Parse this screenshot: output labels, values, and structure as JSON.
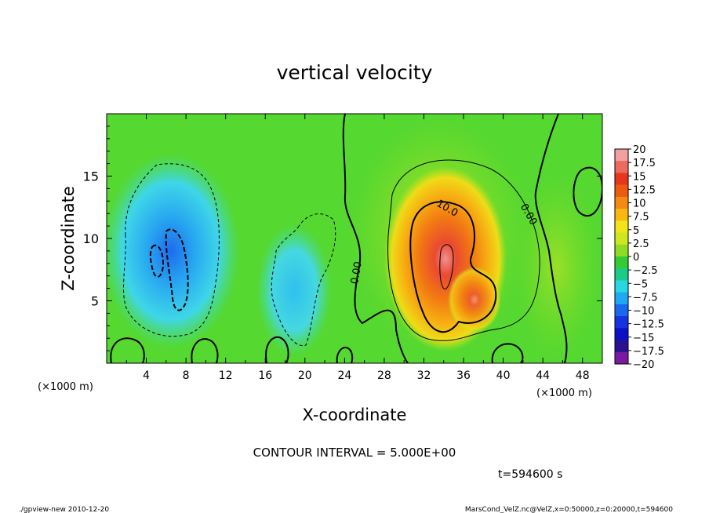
{
  "chart_data": {
    "type": "heatmap",
    "title": "vertical velocity",
    "xlabel": "X-coordinate",
    "ylabel": "Z-coordinate",
    "x_unit_label": "(×1000 m)",
    "y_unit_label": "(×1000 m)",
    "xlim": [
      0,
      50
    ],
    "ylim": [
      0,
      20
    ],
    "x_ticks": [
      4,
      8,
      12,
      16,
      20,
      24,
      28,
      32,
      36,
      40,
      44,
      48
    ],
    "y_ticks": [
      5,
      10,
      15
    ],
    "colorbar": {
      "labels": [
        "20",
        "17.5",
        "15",
        "12.5",
        "10",
        "7.5",
        "5",
        "2.5",
        "0",
        "−2.5",
        "−5",
        "−7.5",
        "−10",
        "−12.5",
        "−15",
        "−17.5",
        "−20"
      ],
      "values": [
        20,
        17.5,
        15,
        12.5,
        10,
        7.5,
        5,
        2.5,
        0,
        -2.5,
        -5,
        -7.5,
        -10,
        -12.5,
        -15,
        -17.5,
        -20
      ],
      "colors": [
        "#f2a0a0",
        "#ee6a5e",
        "#e8361e",
        "#ee5a10",
        "#f48a12",
        "#f9b810",
        "#f1e418",
        "#cde81e",
        "#8edc24",
        "#33cc33",
        "#19cc88",
        "#28d8e0",
        "#1fa8f4",
        "#1a68ee",
        "#1533e0",
        "#0c10c8",
        "#2a1190",
        "#7a1aa0"
      ]
    },
    "contour_labels": [
      {
        "text": "10.0",
        "x": 34.2,
        "y": 12.2
      },
      {
        "text": "0.00",
        "x": 25.5,
        "y": 7.2
      },
      {
        "text": "0.00",
        "x": 42.3,
        "y": 11.8
      }
    ],
    "features": [
      {
        "kind": "updraft",
        "x_center": 34,
        "z_center": 8,
        "peak": 17.5
      },
      {
        "kind": "downdraft",
        "x_center": 6.5,
        "z_center": 9,
        "peak": -12.5
      }
    ],
    "contour_interval_text": "CONTOUR INTERVAL = 5.000E+00",
    "time_text": "t=594600 s"
  },
  "footer": {
    "left": "./gpview-new  2010-12-20",
    "right": "MarsCond_VelZ.nc@VelZ,x=0:50000,z=0:20000,t=594600"
  }
}
